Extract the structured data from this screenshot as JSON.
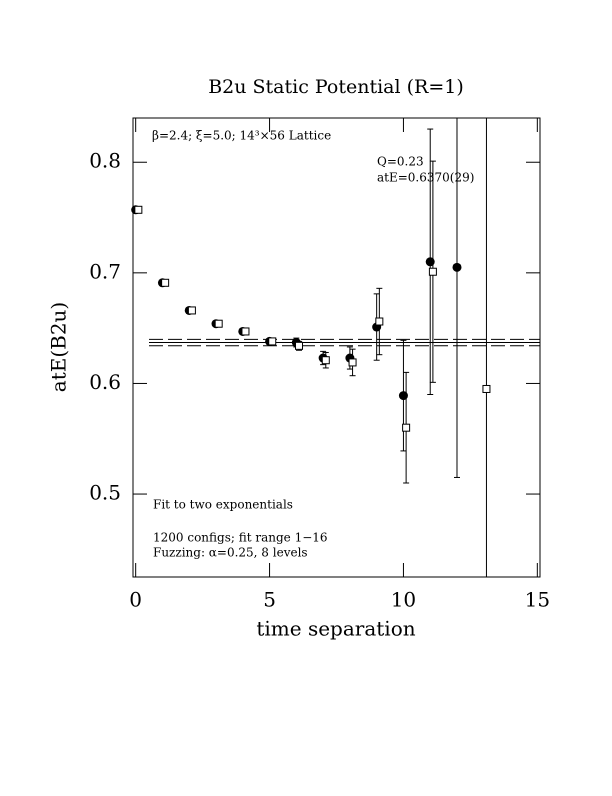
{
  "chart_data": {
    "type": "scatter",
    "title": "B2u Static Potential (R=1)",
    "xlabel": "time separation",
    "ylabel": "atE(B2u)",
    "annotations": [
      "β=2.4; ξ=5.0; 14³×56 Lattice",
      "Q=0.23",
      "atE=0.6370(29)",
      "Fit to two exponentials",
      "1200 configs; fit range 1−16",
      "Fuzzing: α=0.25, 8 levels"
    ],
    "xlim": [
      -0.1,
      15.1
    ],
    "ylim": [
      0.425,
      0.84
    ],
    "xticks": [
      0,
      5,
      10,
      15
    ],
    "yticks": [
      {
        "value": 0.5,
        "label": "0.5"
      },
      {
        "value": 0.6,
        "label": "0.6"
      },
      {
        "value": 0.7,
        "label": "0.7"
      },
      {
        "value": 0.8,
        "label": "0.8"
      }
    ],
    "series": [
      {
        "name": "circles",
        "marker": "circle",
        "color": "#000000",
        "x": [
          0,
          1,
          2,
          3,
          4,
          5,
          6,
          7,
          8,
          9,
          10,
          11,
          12
        ],
        "values": [
          0.757,
          0.691,
          0.666,
          0.654,
          0.647,
          0.638,
          0.637,
          0.623,
          0.623,
          0.651,
          0.589,
          0.71,
          0.705
        ],
        "errors": [
          0.002,
          0.002,
          0.002,
          0.002,
          0.002,
          0.002,
          0.004,
          0.006,
          0.01,
          0.03,
          0.05,
          0.12,
          0.19
        ]
      },
      {
        "name": "squares",
        "marker": "square",
        "color": "#000000",
        "x": [
          0.1,
          1.1,
          2.1,
          3.1,
          4.1,
          5.1,
          6.1,
          7.1,
          8.1,
          9.1,
          10.1,
          11.1,
          13.1
        ],
        "values": [
          0.757,
          0.691,
          0.666,
          0.654,
          0.647,
          0.638,
          0.634,
          0.621,
          0.619,
          0.656,
          0.56,
          0.701,
          0.595
        ],
        "errors": [
          0.002,
          0.002,
          0.002,
          0.002,
          0.002,
          0.002,
          0.004,
          0.007,
          0.012,
          0.03,
          0.05,
          0.1,
          0.3
        ]
      }
    ],
    "fit": {
      "value": 0.637,
      "error": 0.0029
    }
  }
}
